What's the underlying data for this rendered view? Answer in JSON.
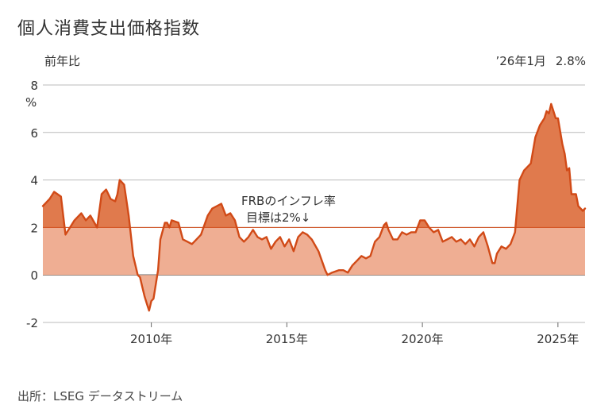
{
  "title": "個人消費支出価格指数",
  "source": "出所：LSEG データストリーム",
  "colors": {
    "line": "#d14a17",
    "fill_below_target": "#efae93",
    "fill_above_target": "#e07a4d",
    "grid": "#bbbbbb",
    "zero_line": "#666666"
  },
  "chart_data": {
    "type": "area",
    "ylabel": "前年比",
    "yunit": "%",
    "ylim": [
      -2,
      8
    ],
    "yticks": [
      -2,
      0,
      2,
      4,
      6,
      8
    ],
    "xlim": [
      "2006-01",
      "2026-01"
    ],
    "xticks": [
      {
        "date": "2010-01",
        "label": "2010年"
      },
      {
        "date": "2015-01",
        "label": "2015年"
      },
      {
        "date": "2020-01",
        "label": "2020年"
      },
      {
        "date": "2025-01",
        "label": "2025年"
      }
    ],
    "grid": "horizontal",
    "target_line": 2,
    "annotation": [
      "FRBのインフレ率",
      "目標は2%↓"
    ],
    "latest_label": "’26年1月",
    "latest_value": "2.8%",
    "series": [
      {
        "points": [
          [
            "2006-01",
            2.9
          ],
          [
            "2006-04",
            3.2
          ],
          [
            "2006-06",
            3.5
          ],
          [
            "2006-09",
            3.3
          ],
          [
            "2006-11",
            1.7
          ],
          [
            "2007-01",
            2.0
          ],
          [
            "2007-03",
            2.3
          ],
          [
            "2007-06",
            2.6
          ],
          [
            "2007-08",
            2.3
          ],
          [
            "2007-10",
            2.5
          ],
          [
            "2008-01",
            2.0
          ],
          [
            "2008-03",
            3.4
          ],
          [
            "2008-05",
            3.6
          ],
          [
            "2008-07",
            3.2
          ],
          [
            "2008-09",
            3.1
          ],
          [
            "2008-10",
            3.4
          ],
          [
            "2008-11",
            4.0
          ],
          [
            "2009-01",
            3.8
          ],
          [
            "2009-03",
            2.5
          ],
          [
            "2009-05",
            0.8
          ],
          [
            "2009-07",
            0.0
          ],
          [
            "2009-08",
            -0.1
          ],
          [
            "2009-09",
            -0.5
          ],
          [
            "2009-10",
            -0.9
          ],
          [
            "2009-11",
            -1.2
          ],
          [
            "2009-12",
            -1.5
          ],
          [
            "2010-01",
            -1.1
          ],
          [
            "2010-02",
            -1.0
          ],
          [
            "2010-04",
            0.2
          ],
          [
            "2010-05",
            1.5
          ],
          [
            "2010-07",
            2.2
          ],
          [
            "2010-08",
            2.2
          ],
          [
            "2010-09",
            2.0
          ],
          [
            "2010-10",
            2.3
          ],
          [
            "2011-01",
            2.2
          ],
          [
            "2011-03",
            1.5
          ],
          [
            "2011-05",
            1.4
          ],
          [
            "2011-07",
            1.3
          ],
          [
            "2011-09",
            1.5
          ],
          [
            "2011-11",
            1.7
          ],
          [
            "2012-02",
            2.5
          ],
          [
            "2012-04",
            2.8
          ],
          [
            "2012-06",
            2.9
          ],
          [
            "2012-08",
            3.0
          ],
          [
            "2012-10",
            2.5
          ],
          [
            "2012-12",
            2.6
          ],
          [
            "2013-02",
            2.3
          ],
          [
            "2013-04",
            1.6
          ],
          [
            "2013-06",
            1.4
          ],
          [
            "2013-08",
            1.6
          ],
          [
            "2013-10",
            1.9
          ],
          [
            "2013-12",
            1.6
          ],
          [
            "2014-02",
            1.5
          ],
          [
            "2014-04",
            1.6
          ],
          [
            "2014-06",
            1.1
          ],
          [
            "2014-08",
            1.4
          ],
          [
            "2014-10",
            1.6
          ],
          [
            "2014-12",
            1.2
          ],
          [
            "2015-02",
            1.5
          ],
          [
            "2015-04",
            1.0
          ],
          [
            "2015-06",
            1.6
          ],
          [
            "2015-08",
            1.8
          ],
          [
            "2015-10",
            1.7
          ],
          [
            "2015-12",
            1.5
          ],
          [
            "2016-03",
            1.0
          ],
          [
            "2016-06",
            0.2
          ],
          [
            "2016-07",
            0.0
          ],
          [
            "2016-09",
            0.1
          ],
          [
            "2016-12",
            0.2
          ],
          [
            "2017-02",
            0.2
          ],
          [
            "2017-04",
            0.1
          ],
          [
            "2017-06",
            0.4
          ],
          [
            "2017-08",
            0.6
          ],
          [
            "2017-10",
            0.8
          ],
          [
            "2017-12",
            0.7
          ],
          [
            "2018-02",
            0.8
          ],
          [
            "2018-04",
            1.4
          ],
          [
            "2018-06",
            1.6
          ],
          [
            "2018-08",
            2.1
          ],
          [
            "2018-09",
            2.2
          ],
          [
            "2018-10",
            1.9
          ],
          [
            "2018-12",
            1.5
          ],
          [
            "2019-02",
            1.5
          ],
          [
            "2019-04",
            1.8
          ],
          [
            "2019-06",
            1.7
          ],
          [
            "2019-08",
            1.8
          ],
          [
            "2019-10",
            1.8
          ],
          [
            "2019-12",
            2.3
          ],
          [
            "2020-02",
            2.3
          ],
          [
            "2020-04",
            2.0
          ],
          [
            "2020-06",
            1.8
          ],
          [
            "2020-08",
            1.9
          ],
          [
            "2020-10",
            1.4
          ],
          [
            "2020-12",
            1.5
          ],
          [
            "2021-02",
            1.6
          ],
          [
            "2021-04",
            1.4
          ],
          [
            "2021-06",
            1.5
          ],
          [
            "2021-08",
            1.3
          ],
          [
            "2021-10",
            1.5
          ],
          [
            "2021-12",
            1.2
          ],
          [
            "2022-02",
            1.6
          ],
          [
            "2022-04",
            1.8
          ],
          [
            "2022-06",
            1.2
          ],
          [
            "2022-08",
            0.5
          ],
          [
            "2022-09",
            0.5
          ],
          [
            "2022-10",
            0.9
          ],
          [
            "2022-12",
            1.2
          ],
          [
            "2023-02",
            1.1
          ],
          [
            "2023-04",
            1.3
          ],
          [
            "2023-06",
            1.8
          ],
          [
            "2023-08",
            4.0
          ],
          [
            "2023-10",
            4.4
          ],
          [
            "2023-12",
            4.6
          ],
          [
            "2024-01",
            4.7
          ],
          [
            "2024-03",
            5.8
          ],
          [
            "2024-05",
            6.3
          ],
          [
            "2024-07",
            6.6
          ],
          [
            "2024-08",
            6.9
          ],
          [
            "2024-09",
            6.8
          ],
          [
            "2024-10",
            7.2
          ],
          [
            "2024-11",
            6.9
          ],
          [
            "2024-12",
            6.6
          ],
          [
            "2025-01",
            6.6
          ],
          [
            "2025-03",
            5.5
          ],
          [
            "2025-04",
            5.1
          ],
          [
            "2025-05",
            4.4
          ],
          [
            "2025-06",
            4.5
          ],
          [
            "2025-07",
            3.4
          ],
          [
            "2025-09",
            3.4
          ],
          [
            "2025-10",
            2.9
          ],
          [
            "2025-12",
            2.7
          ],
          [
            "2026-01",
            2.8
          ]
        ]
      }
    ]
  }
}
